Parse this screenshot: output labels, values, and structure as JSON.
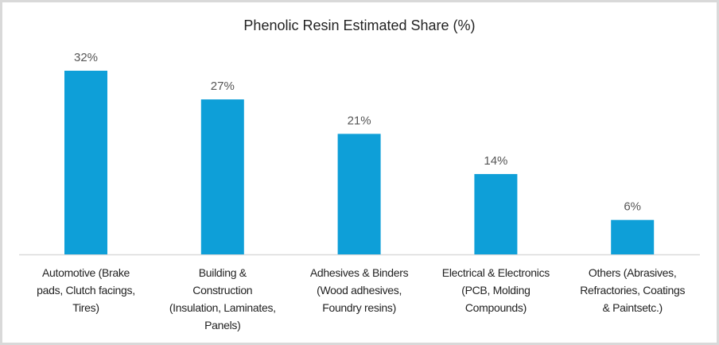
{
  "chart_data": {
    "type": "bar",
    "title": "Phenolic Resin Estimated Share (%)",
    "xlabel": "",
    "ylabel": "",
    "ylim": [
      0,
      32
    ],
    "grid": false,
    "colors": {
      "bar": "#0e9fd8",
      "axis": "#d9d9d9"
    },
    "categories": [
      [
        "Automotive (Brake",
        "pads, Clutch facings,",
        "Tires)"
      ],
      [
        "Building &",
        "Construction",
        "(Insulation, Laminates,",
        "Panels)"
      ],
      [
        "Adhesives & Binders",
        "(Wood adhesives,",
        "Foundry resins)"
      ],
      [
        "Electrical & Electronics",
        "(PCB, Molding",
        "Compounds)"
      ],
      [
        "Others (Abrasives,",
        "Refractories, Coatings",
        "& Paintsetc.)"
      ]
    ],
    "values": [
      32,
      27,
      21,
      14,
      6
    ],
    "data_labels": [
      "32%",
      "27%",
      "21%",
      "14%",
      "6%"
    ]
  }
}
